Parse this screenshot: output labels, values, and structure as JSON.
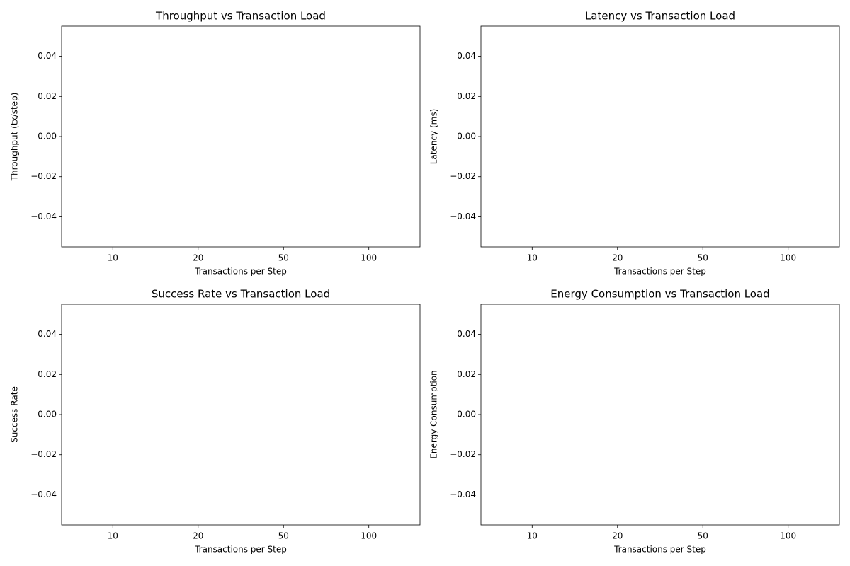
{
  "chart_data": [
    {
      "type": "bar",
      "title": "Throughput vs Transaction Load",
      "xlabel": "Transactions per Step",
      "ylabel": "Throughput (tx/step)",
      "categories": [
        "10",
        "20",
        "50",
        "100"
      ],
      "values": [
        0,
        0,
        0,
        0
      ],
      "color": "#1f77b4",
      "ylim": [
        -0.055,
        0.055
      ],
      "yticks": [
        {
          "value": -0.04,
          "label": "−0.04"
        },
        {
          "value": -0.02,
          "label": "−0.02"
        },
        {
          "value": 0,
          "label": "0.00"
        },
        {
          "value": 0.02,
          "label": "0.02"
        },
        {
          "value": 0.04,
          "label": "0.04"
        }
      ]
    },
    {
      "type": "bar",
      "title": "Latency vs Transaction Load",
      "xlabel": "Transactions per Step",
      "ylabel": "Latency (ms)",
      "categories": [
        "10",
        "20",
        "50",
        "100"
      ],
      "values": [
        0,
        0,
        0,
        0
      ],
      "color": "#1f77b4",
      "ylim": [
        -0.055,
        0.055
      ],
      "yticks": [
        {
          "value": -0.04,
          "label": "−0.04"
        },
        {
          "value": -0.02,
          "label": "−0.02"
        },
        {
          "value": 0,
          "label": "0.00"
        },
        {
          "value": 0.02,
          "label": "0.02"
        },
        {
          "value": 0.04,
          "label": "0.04"
        }
      ]
    },
    {
      "type": "bar",
      "title": "Success Rate vs Transaction Load",
      "xlabel": "Transactions per Step",
      "ylabel": "Success Rate",
      "categories": [
        "10",
        "20",
        "50",
        "100"
      ],
      "values": [
        0,
        0,
        0,
        0
      ],
      "color": "#1f77b4",
      "ylim": [
        -0.055,
        0.055
      ],
      "yticks": [
        {
          "value": -0.04,
          "label": "−0.04"
        },
        {
          "value": -0.02,
          "label": "−0.02"
        },
        {
          "value": 0,
          "label": "0.00"
        },
        {
          "value": 0.02,
          "label": "0.02"
        },
        {
          "value": 0.04,
          "label": "0.04"
        }
      ]
    },
    {
      "type": "bar",
      "title": "Energy Consumption vs Transaction Load",
      "xlabel": "Transactions per Step",
      "ylabel": "Energy Consumption",
      "categories": [
        "10",
        "20",
        "50",
        "100"
      ],
      "values": [
        0,
        0,
        0,
        0
      ],
      "color": "#1f77b4",
      "ylim": [
        -0.055,
        0.055
      ],
      "yticks": [
        {
          "value": -0.04,
          "label": "−0.04"
        },
        {
          "value": -0.02,
          "label": "−0.02"
        },
        {
          "value": 0,
          "label": "0.00"
        },
        {
          "value": 0.02,
          "label": "0.02"
        },
        {
          "value": 0.04,
          "label": "0.04"
        }
      ]
    }
  ]
}
